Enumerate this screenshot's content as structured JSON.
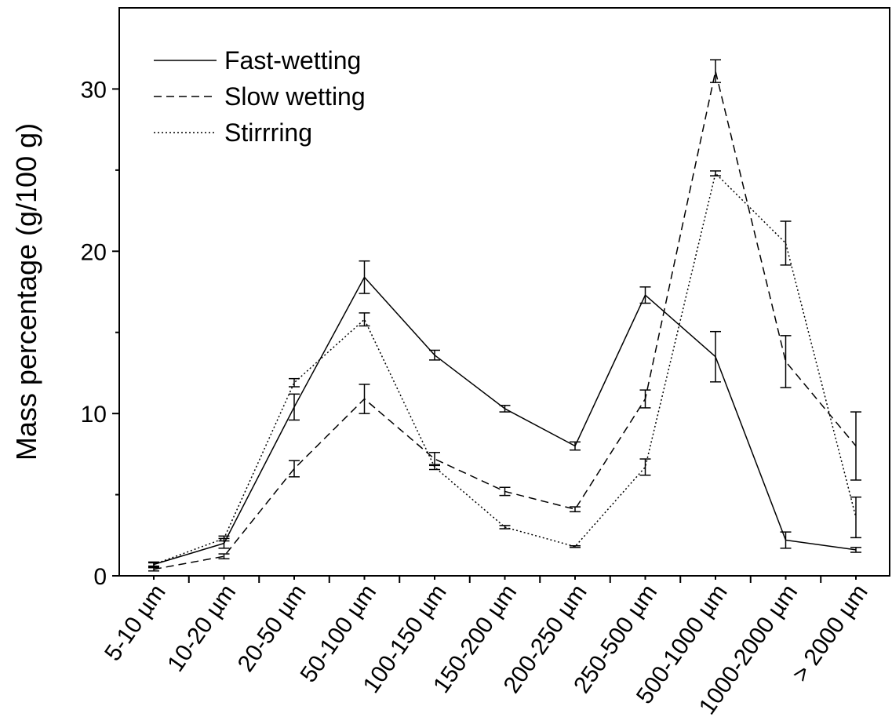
{
  "chart_data": {
    "type": "line",
    "title": "",
    "xlabel": "",
    "ylabel": "Mass percentage (g/100 g)",
    "ylim": [
      0,
      35
    ],
    "yticks": [
      0,
      10,
      20,
      30
    ],
    "grid": false,
    "legend_position": "top-left",
    "categories": [
      "5-10 µm",
      "10-20 µm",
      "20-50 µm",
      "50-100 µm",
      "100-150 µm",
      "150-200 µm",
      "200-250 µm",
      "250-500 µm",
      "500-1000 µm",
      "1000-2000 µm",
      "> 2000 µm"
    ],
    "series": [
      {
        "name": "Fast-wetting",
        "dash": "solid",
        "color": "#000000",
        "values": [
          0.7,
          2.0,
          10.4,
          18.4,
          13.6,
          10.3,
          8.0,
          17.3,
          13.5,
          2.2,
          1.6
        ],
        "errors": [
          0.15,
          0.3,
          0.8,
          1.0,
          0.3,
          0.2,
          0.25,
          0.5,
          1.55,
          0.5,
          0.15
        ]
      },
      {
        "name": "Slow wetting",
        "dash": "dashed",
        "color": "#000000",
        "values": [
          0.4,
          1.2,
          6.6,
          10.9,
          7.2,
          5.2,
          4.1,
          10.9,
          31.1,
          13.2,
          8.0
        ],
        "errors": [
          0.1,
          0.15,
          0.5,
          0.9,
          0.4,
          0.25,
          0.15,
          0.55,
          0.7,
          1.6,
          2.1
        ]
      },
      {
        "name": "Stirrring",
        "dash": "dotted",
        "color": "#000000",
        "values": [
          0.7,
          2.3,
          11.9,
          15.8,
          6.7,
          3.0,
          1.8,
          6.7,
          24.8,
          20.5,
          3.6
        ],
        "errors": [
          0.1,
          0.15,
          0.25,
          0.4,
          0.15,
          0.1,
          0.05,
          0.5,
          0.15,
          1.35,
          1.25
        ]
      }
    ]
  }
}
